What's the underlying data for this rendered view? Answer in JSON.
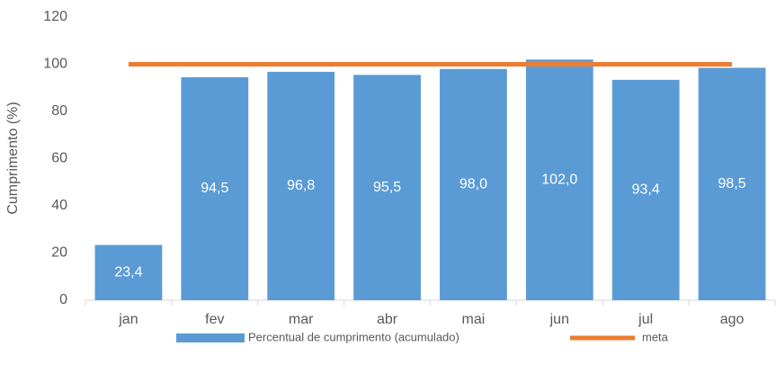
{
  "chart_data": {
    "type": "bar",
    "y_label": "Cumprimento (%)",
    "categories": [
      "jan",
      "fev",
      "mar",
      "abr",
      "mai",
      "jun",
      "jul",
      "ago"
    ],
    "series": [
      {
        "name": "Percentual de cumprimento (acumulado)",
        "type": "bar",
        "color": "#5b9bd5",
        "values": [
          23.4,
          94.5,
          96.8,
          95.5,
          98.0,
          102.0,
          93.4,
          98.5
        ],
        "value_labels": [
          "23,4",
          "94,5",
          "96,8",
          "95,5",
          "98,0",
          "102,0",
          "93,4",
          "98,5"
        ]
      },
      {
        "name": "meta",
        "type": "line",
        "color": "#ed7d31",
        "values": [
          100,
          100,
          100,
          100,
          100,
          100,
          100,
          100
        ]
      }
    ],
    "ylim": [
      0,
      120
    ],
    "yticks": [
      0,
      20,
      40,
      60,
      80,
      100,
      120
    ],
    "grid": false,
    "legend": "bottom"
  }
}
